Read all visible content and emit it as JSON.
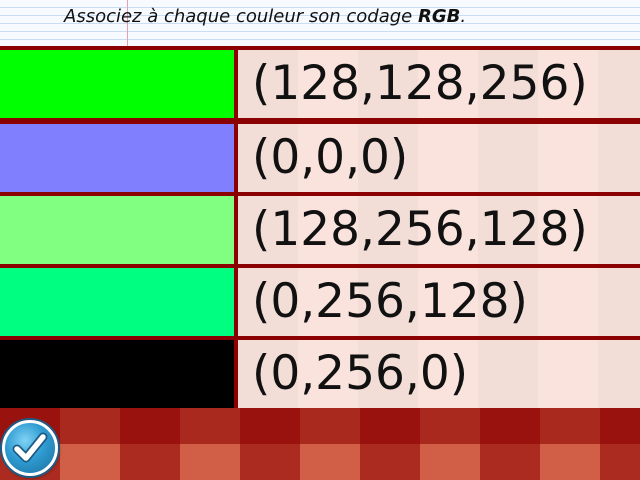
{
  "instruction": {
    "text_before": "Associez à chaque couleur son codage ",
    "bold": "RGB",
    "text_after": "."
  },
  "rows": [
    {
      "swatch_color": "#00ff00",
      "code": "(128,128,256)"
    },
    {
      "swatch_color": "#8080ff",
      "code": "(0,0,0)"
    },
    {
      "swatch_color": "#80ff80",
      "code": "(128,256,128)"
    },
    {
      "swatch_color": "#00ff80",
      "code": "(0,256,128)"
    },
    {
      "swatch_color": "#000000",
      "code": "(0,256,0)"
    }
  ],
  "validate_button": {
    "icon": "checkmark-icon"
  },
  "colors": {
    "frame": "#8b0000",
    "code_background": "#f9e3dc",
    "button_blue": "#2f9bd1"
  }
}
